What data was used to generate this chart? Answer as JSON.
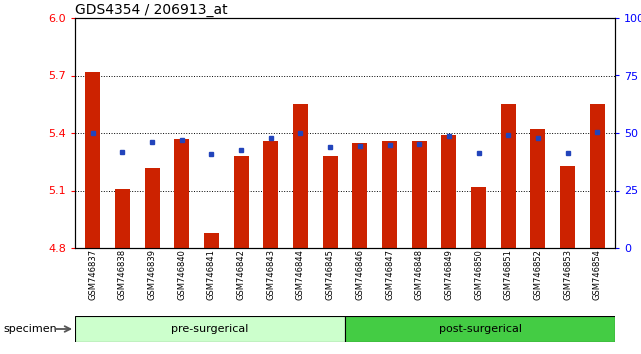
{
  "title": "GDS4354 / 206913_at",
  "samples": [
    "GSM746837",
    "GSM746838",
    "GSM746839",
    "GSM746840",
    "GSM746841",
    "GSM746842",
    "GSM746843",
    "GSM746844",
    "GSM746845",
    "GSM746846",
    "GSM746847",
    "GSM746848",
    "GSM746849",
    "GSM746850",
    "GSM746851",
    "GSM746852",
    "GSM746853",
    "GSM746854"
  ],
  "red_values": [
    5.72,
    5.11,
    5.22,
    5.37,
    4.88,
    5.28,
    5.36,
    5.55,
    5.28,
    5.35,
    5.36,
    5.36,
    5.39,
    5.12,
    5.55,
    5.42,
    5.23,
    5.55
  ],
  "blue_values": [
    5.4,
    5.3,
    5.355,
    5.365,
    5.29,
    5.31,
    5.375,
    5.4,
    5.325,
    5.33,
    5.335,
    5.345,
    5.385,
    5.295,
    5.39,
    5.375,
    5.295,
    5.405
  ],
  "pre_surgical_count": 9,
  "post_surgical_count": 9,
  "ylim_left": [
    4.8,
    6.0
  ],
  "ylim_right": [
    0,
    100
  ],
  "yticks_left": [
    4.8,
    5.1,
    5.4,
    5.7,
    6.0
  ],
  "yticks_right": [
    0,
    25,
    50,
    75,
    100
  ],
  "bar_color": "#cc2200",
  "blue_color": "#2244bb",
  "baseline": 4.8,
  "bar_width": 0.5,
  "gray_bg": "#c8c8c8",
  "pre_color": "#ccffcc",
  "post_color": "#44cc44",
  "title_fontsize": 10,
  "grid_ticks": [
    5.1,
    5.4,
    5.7
  ]
}
